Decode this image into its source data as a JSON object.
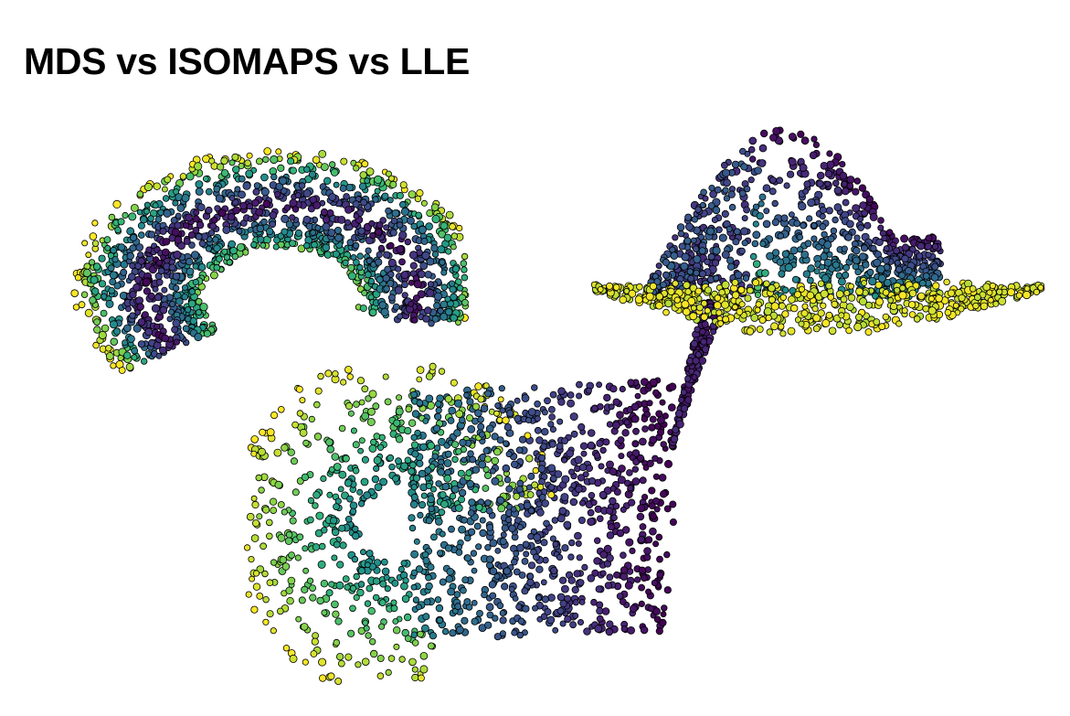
{
  "title": "MDS vs ISOMAPS vs LLE",
  "chart_data": [
    {
      "type": "scatter",
      "colormap": "viridis",
      "marker_edge_color": "#000000",
      "axes_visible": false,
      "color_range": [
        0,
        1
      ],
      "approx_point_count": 1400
    },
    {
      "type": "scatter",
      "colormap": "viridis",
      "marker_edge_color": "#000000",
      "axes_visible": false,
      "color_range": [
        0,
        1
      ],
      "approx_point_count": 1500
    },
    {
      "type": "scatter",
      "colormap": "viridis",
      "marker_edge_color": "#000000",
      "axes_visible": false,
      "color_range": [
        0,
        1
      ],
      "approx_point_count": 1500
    }
  ]
}
